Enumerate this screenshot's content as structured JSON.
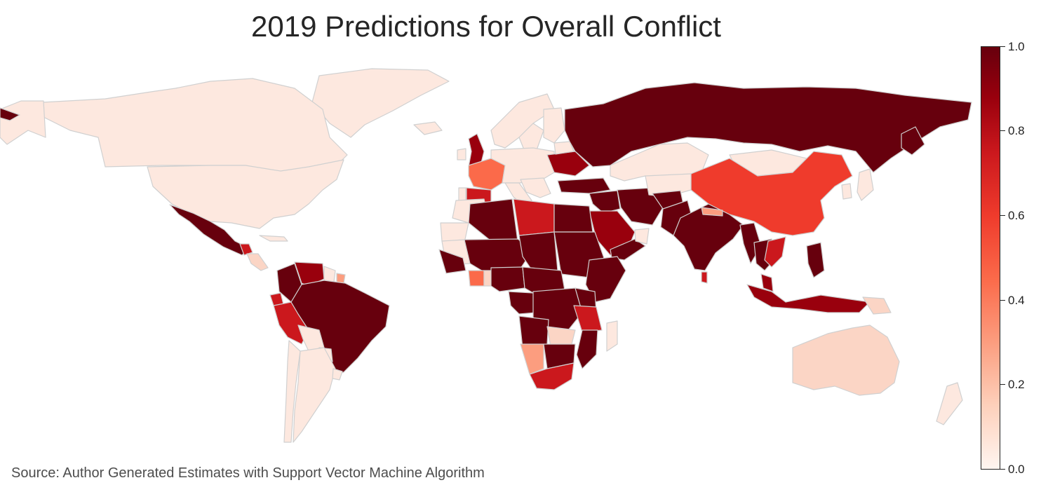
{
  "title": "2019 Predictions for Overall Conflict",
  "source": "Source: Author Generated Estimates with Support Vector Machine Algorithm",
  "colorbar": {
    "ticks": [
      "1.0",
      "0.8",
      "0.6",
      "0.4",
      "0.2",
      "0.0"
    ],
    "colormap": "Reds",
    "range": [
      0.0,
      1.0
    ]
  },
  "colors": {
    "low": "#fde8df",
    "pale": "#fbd5c5",
    "mid": "#fb6a4a",
    "orange_red": "#ef3b2c",
    "red": "#cb181d",
    "dark": "#99000d",
    "darkest": "#67000d",
    "border": "#d0d0d0"
  }
}
